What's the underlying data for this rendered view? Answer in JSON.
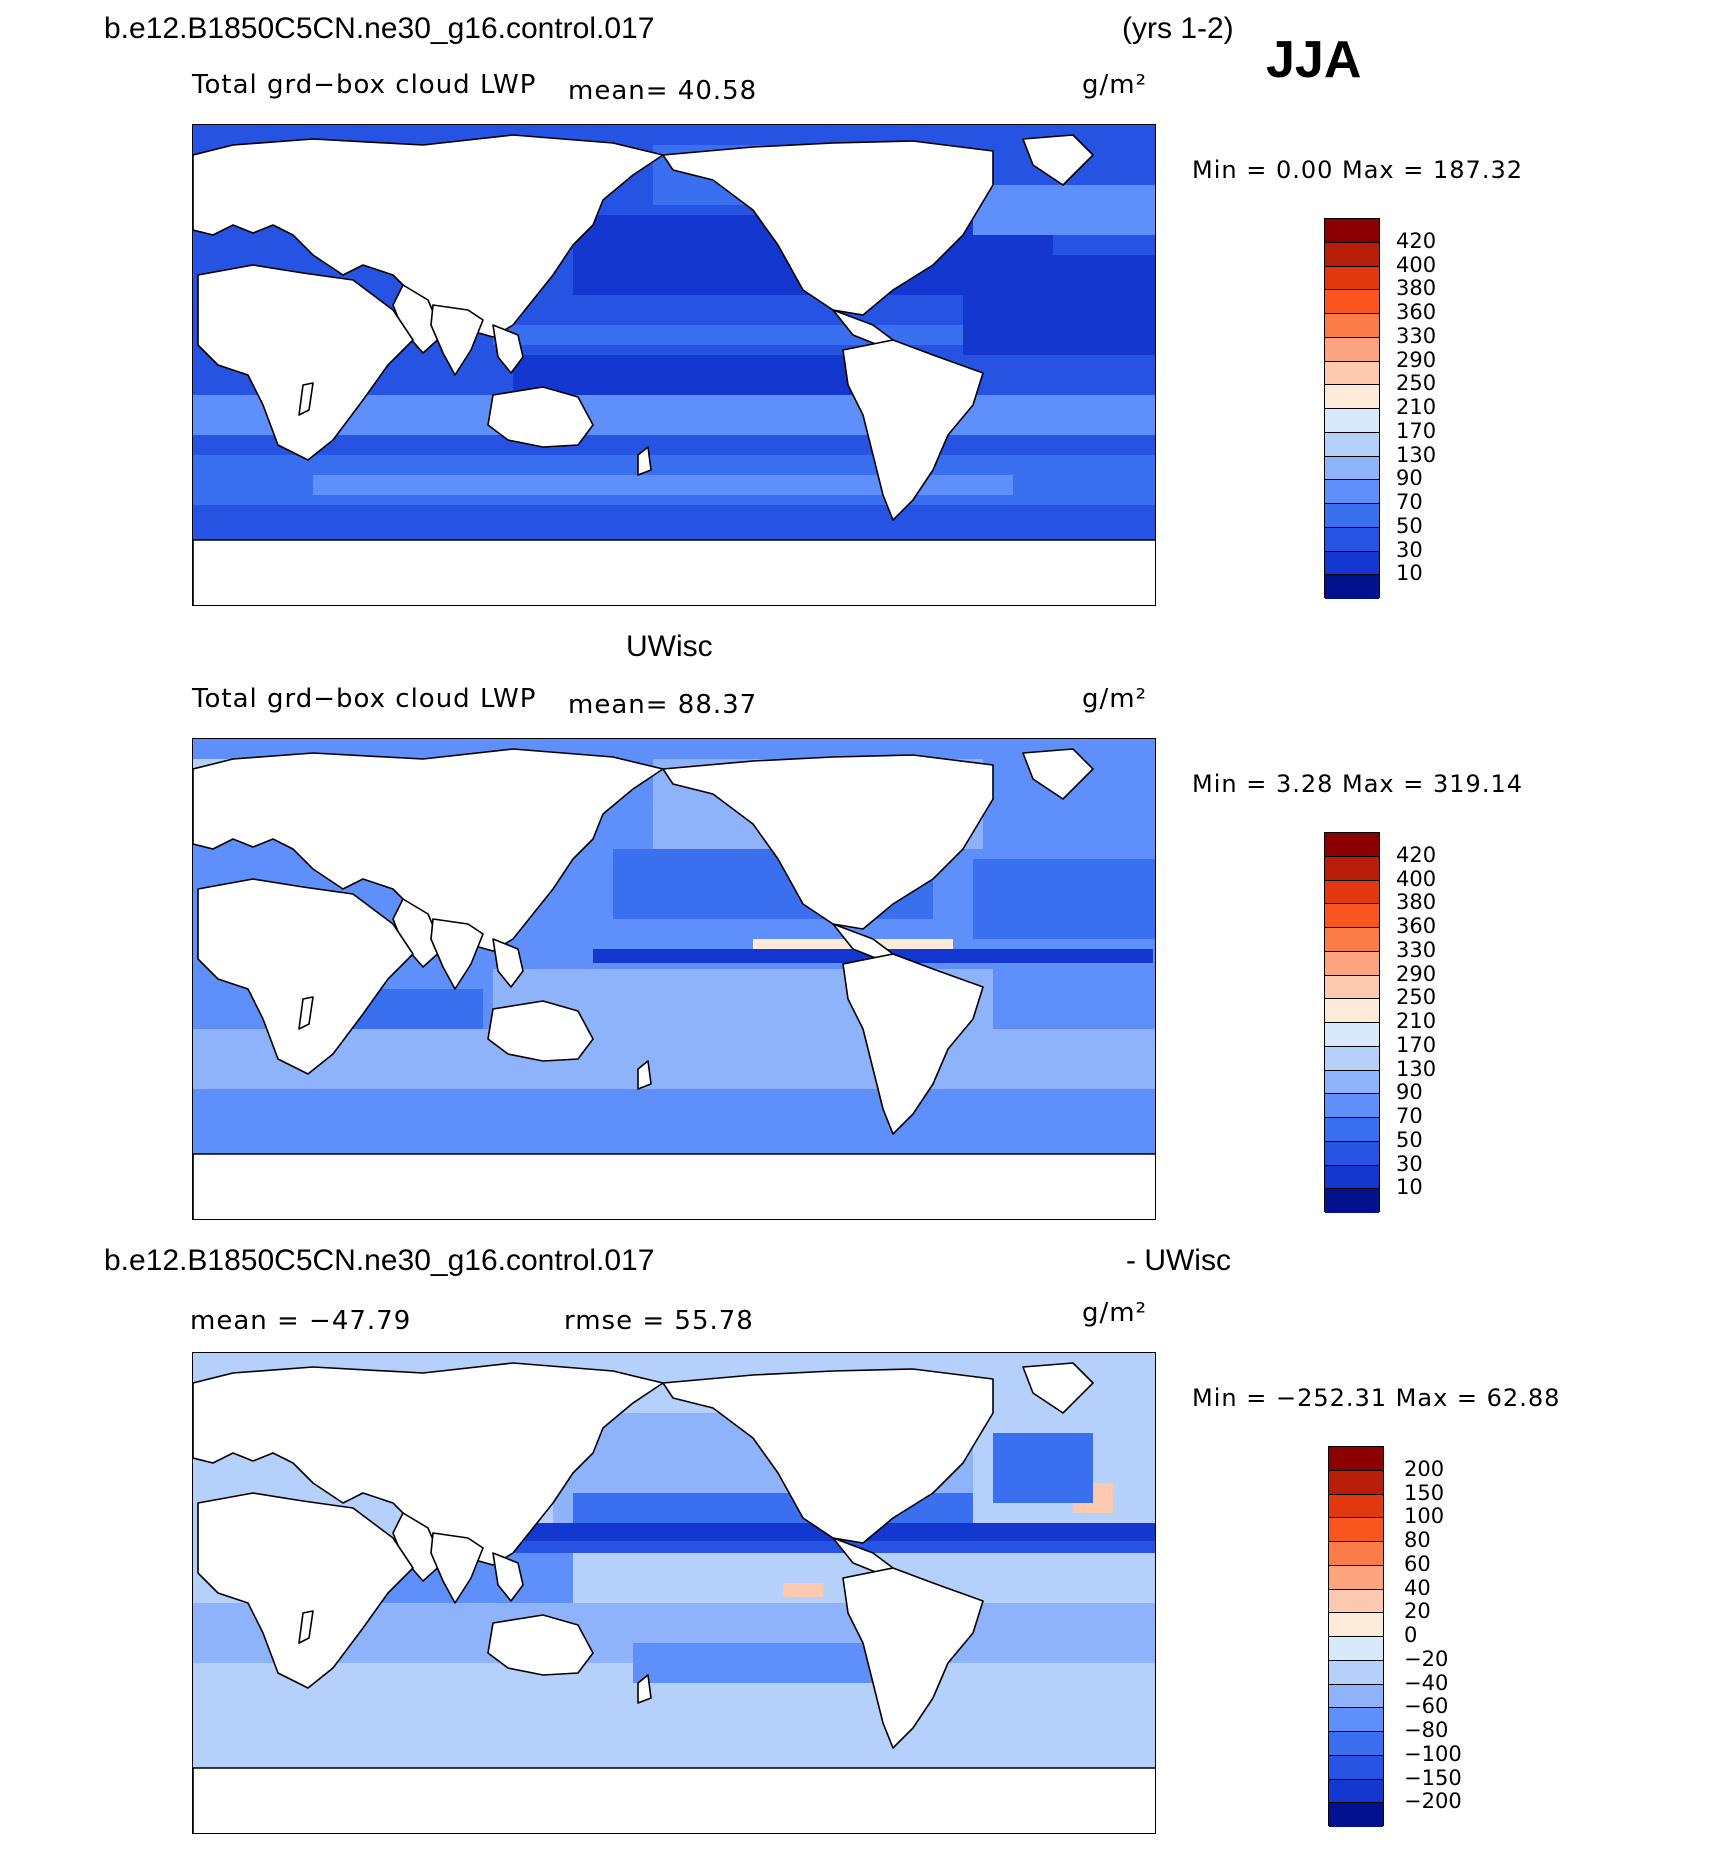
{
  "header": {
    "case_name": "b.e12.B1850C5CN.ne30_g16.control.017",
    "years": "(yrs 1-2)",
    "season": "JJA"
  },
  "panels": [
    {
      "title": "",
      "field": "Total grd−box cloud LWP",
      "mean_text": "mean=   40.58",
      "units": "g/m²",
      "minmax": "Min =    0.00  Max =  187.32",
      "levels": [
        "420",
        "400",
        "380",
        "360",
        "330",
        "290",
        "250",
        "210",
        "170",
        "130",
        "90",
        "70",
        "50",
        "30",
        "10"
      ],
      "colors": [
        "#8b0000",
        "#b81d0a",
        "#e2380f",
        "#f8561e",
        "#fb7c48",
        "#fca380",
        "#fdcab0",
        "#fcebd9",
        "#d7e9fa",
        "#b4d0fb",
        "#8eb3fb",
        "#5f8ffb",
        "#3a6ff0",
        "#2653e1",
        "#1438cf",
        "#02128f"
      ]
    },
    {
      "title": "UWisc",
      "field": "Total grd−box cloud LWP",
      "mean_text": "mean=   88.37",
      "units": "g/m²",
      "minmax": "Min =    3.28  Max =  319.14",
      "levels": [
        "420",
        "400",
        "380",
        "360",
        "330",
        "290",
        "250",
        "210",
        "170",
        "130",
        "90",
        "70",
        "50",
        "30",
        "10"
      ],
      "colors": [
        "#8b0000",
        "#b81d0a",
        "#e2380f",
        "#f8561e",
        "#fb7c48",
        "#fca380",
        "#fdcab0",
        "#fcebd9",
        "#d7e9fa",
        "#b4d0fb",
        "#8eb3fb",
        "#5f8ffb",
        "#3a6ff0",
        "#2653e1",
        "#1438cf",
        "#02128f"
      ]
    },
    {
      "title_left": "b.e12.B1850C5CN.ne30_g16.control.017",
      "title_right": "- UWisc",
      "mean_text": "mean = −47.79",
      "rmse_text": "rmse =   55.78",
      "units": "g/m²",
      "minmax": "Min = −252.31  Max =   62.88",
      "levels": [
        "200",
        "150",
        "100",
        "80",
        "60",
        "40",
        "20",
        "0",
        "−20",
        "−40",
        "−60",
        "−80",
        "−100",
        "−150",
        "−200"
      ],
      "colors": [
        "#8b0000",
        "#b81d0a",
        "#e2380f",
        "#f8561e",
        "#fb7c48",
        "#fca380",
        "#fdcab0",
        "#fcebd9",
        "#d7e9fa",
        "#b4d0fb",
        "#8eb3fb",
        "#5f8ffb",
        "#3a6ff0",
        "#2653e1",
        "#1438cf",
        "#02128f"
      ]
    }
  ]
}
